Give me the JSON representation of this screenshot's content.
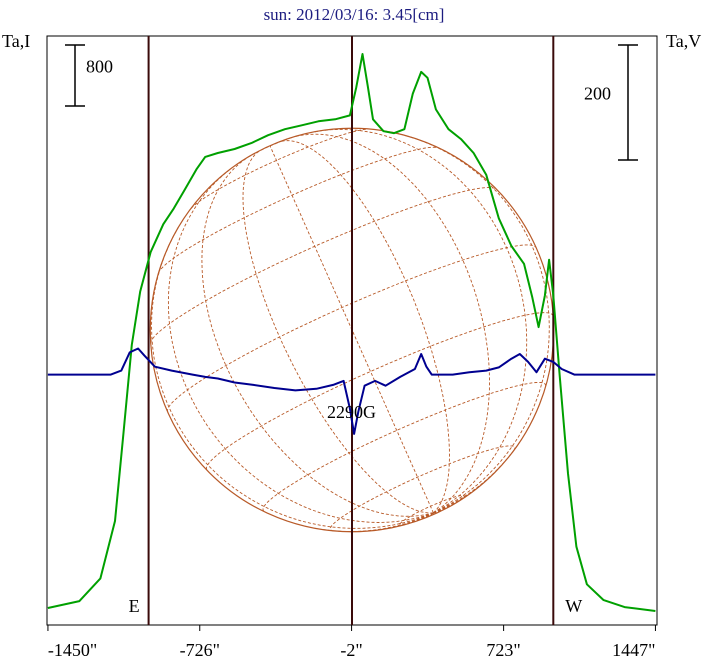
{
  "chart_data": {
    "type": "line",
    "title": "sun: 2012/03/16: 3.45[cm]",
    "left_axis_label": "Ta,I",
    "right_axis_label": "Ta,V",
    "x_ticks": [
      {
        "value": -1450,
        "label": "-1450\""
      },
      {
        "value": -726,
        "label": "-726\""
      },
      {
        "value": -2,
        "label": "-2\""
      },
      {
        "value": 723,
        "label": "723\""
      },
      {
        "value": 1447,
        "label": "1447\""
      }
    ],
    "xlim": [
      -1450,
      1447
    ],
    "scale_bar_left": "800",
    "scale_bar_right": "200",
    "limb_markers": [
      {
        "label": "E",
        "x": -970
      },
      {
        "label": "W",
        "x": 960
      }
    ],
    "center_marker_x": 0,
    "annotation": "2290G",
    "solar_disk_radius": 962,
    "colors": {
      "title": "#1c1c80",
      "intensity": "#00a000",
      "polarization": "#000090",
      "disk": "#b85a28",
      "markers": "#3a0a0a"
    },
    "series": [
      {
        "units": "Ta,I",
        "ylim": [
          0,
          2800
        ],
        "points": [
          [
            -1450,
            20
          ],
          [
            -1300,
            55
          ],
          [
            -1200,
            170
          ],
          [
            -1130,
            460
          ],
          [
            -1090,
            900
          ],
          [
            -1050,
            1350
          ],
          [
            -1010,
            1620
          ],
          [
            -960,
            1820
          ],
          [
            -900,
            1960
          ],
          [
            -850,
            2040
          ],
          [
            -800,
            2130
          ],
          [
            -740,
            2240
          ],
          [
            -700,
            2300
          ],
          [
            -640,
            2320
          ],
          [
            -560,
            2340
          ],
          [
            -480,
            2370
          ],
          [
            -400,
            2410
          ],
          [
            -320,
            2440
          ],
          [
            -240,
            2460
          ],
          [
            -160,
            2480
          ],
          [
            -80,
            2490
          ],
          [
            -10,
            2510
          ],
          [
            20,
            2650
          ],
          [
            50,
            2820
          ],
          [
            75,
            2660
          ],
          [
            100,
            2490
          ],
          [
            150,
            2430
          ],
          [
            200,
            2420
          ],
          [
            250,
            2440
          ],
          [
            290,
            2620
          ],
          [
            330,
            2730
          ],
          [
            360,
            2700
          ],
          [
            400,
            2540
          ],
          [
            460,
            2440
          ],
          [
            520,
            2390
          ],
          [
            580,
            2320
          ],
          [
            640,
            2210
          ],
          [
            700,
            1990
          ],
          [
            760,
            1850
          ],
          [
            820,
            1760
          ],
          [
            860,
            1590
          ],
          [
            890,
            1440
          ],
          [
            920,
            1600
          ],
          [
            940,
            1780
          ],
          [
            960,
            1600
          ],
          [
            990,
            1200
          ],
          [
            1030,
            700
          ],
          [
            1070,
            330
          ],
          [
            1120,
            140
          ],
          [
            1200,
            60
          ],
          [
            1300,
            25
          ],
          [
            1447,
            5
          ]
        ]
      },
      {
        "units": "Ta,V",
        "ylim": [
          -300,
          400
        ],
        "points": [
          [
            -1450,
            0
          ],
          [
            -1150,
            0
          ],
          [
            -1100,
            5
          ],
          [
            -1060,
            28
          ],
          [
            -1020,
            33
          ],
          [
            -990,
            24
          ],
          [
            -940,
            10
          ],
          [
            -860,
            5
          ],
          [
            -760,
            0
          ],
          [
            -700,
            -3
          ],
          [
            -640,
            -5
          ],
          [
            -560,
            -10
          ],
          [
            -470,
            -13
          ],
          [
            -370,
            -17
          ],
          [
            -270,
            -20
          ],
          [
            -170,
            -18
          ],
          [
            -90,
            -13
          ],
          [
            -40,
            -8
          ],
          [
            -10,
            -43
          ],
          [
            10,
            -75
          ],
          [
            30,
            -47
          ],
          [
            60,
            -14
          ],
          [
            110,
            -8
          ],
          [
            160,
            -14
          ],
          [
            230,
            -3
          ],
          [
            300,
            7
          ],
          [
            330,
            26
          ],
          [
            355,
            10
          ],
          [
            380,
            0
          ],
          [
            480,
            0
          ],
          [
            560,
            3
          ],
          [
            640,
            5
          ],
          [
            700,
            9
          ],
          [
            760,
            20
          ],
          [
            800,
            26
          ],
          [
            840,
            16
          ],
          [
            880,
            3
          ],
          [
            920,
            20
          ],
          [
            960,
            16
          ],
          [
            1000,
            7
          ],
          [
            1060,
            0
          ],
          [
            1447,
            0
          ]
        ]
      }
    ]
  }
}
